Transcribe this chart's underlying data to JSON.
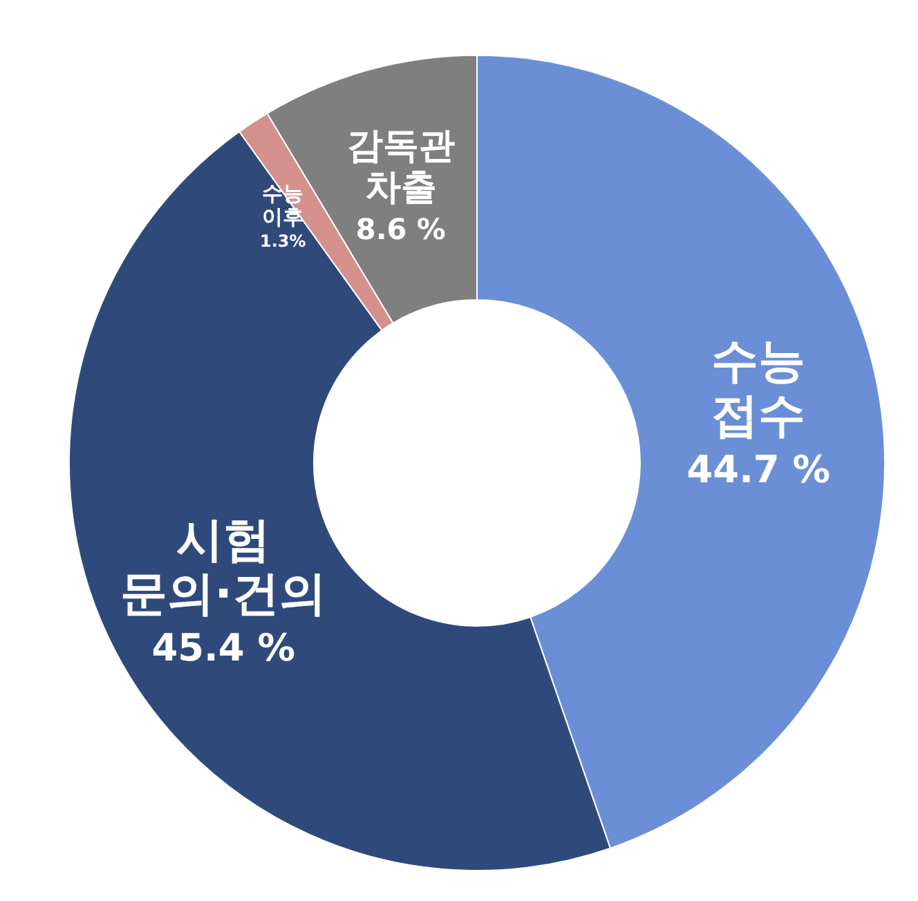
{
  "chart_data": {
    "type": "donut",
    "categories": [
      "수능 접수",
      "시험 문의·건의",
      "수능 이후",
      "감독관 차출"
    ],
    "values": [
      44.7,
      45.4,
      1.3,
      8.6
    ],
    "colors": [
      "#6b8fd6",
      "#2f4a7a",
      "#d4918c",
      "#7f7f7f"
    ],
    "value_labels": [
      "44.7 %",
      "45.4 %",
      "1.3%",
      "8.6 %"
    ],
    "legend": false
  }
}
